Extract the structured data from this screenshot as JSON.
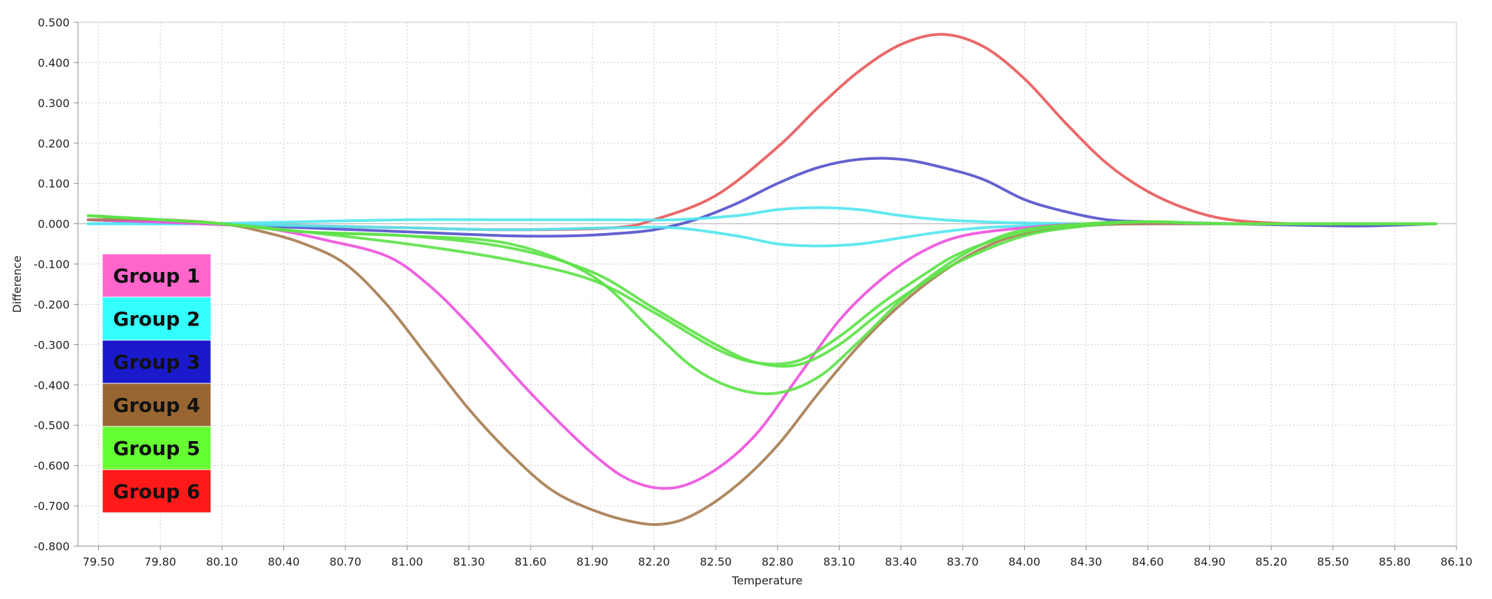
{
  "chart_data": {
    "type": "line",
    "title": "",
    "xlabel": "Temperature",
    "ylabel": "Difference",
    "xlim": [
      79.4,
      86.1
    ],
    "ylim": [
      -0.8,
      0.5
    ],
    "x_ticks": [
      "79.50",
      "79.80",
      "80.10",
      "80.40",
      "80.70",
      "81.00",
      "81.30",
      "81.60",
      "81.90",
      "82.20",
      "82.50",
      "82.80",
      "83.10",
      "83.40",
      "83.70",
      "84.00",
      "84.30",
      "84.60",
      "84.90",
      "85.20",
      "85.50",
      "85.80",
      "86.10"
    ],
    "y_ticks": [
      "0.500",
      "0.400",
      "0.300",
      "0.200",
      "0.100",
      "0.000",
      "-0.100",
      "-0.200",
      "-0.300",
      "-0.400",
      "-0.500",
      "-0.600",
      "-0.700",
      "-0.800"
    ],
    "grid": true,
    "legend_placement": "left",
    "legend": [
      {
        "label": "Group 1",
        "color": "#ff66cc"
      },
      {
        "label": "Group 2",
        "color": "#33ffff"
      },
      {
        "label": "Group 3",
        "color": "#1a1acc"
      },
      {
        "label": "Group 4",
        "color": "#996633"
      },
      {
        "label": "Group 5",
        "color": "#66ff33"
      },
      {
        "label": "Group 6",
        "color": "#ff1a1a"
      }
    ],
    "series": [
      {
        "group": "Group 6",
        "color": "#e85c5c",
        "x": [
          79.45,
          80.0,
          80.5,
          81.0,
          81.5,
          82.0,
          82.2,
          82.5,
          82.8,
          83.0,
          83.2,
          83.4,
          83.6,
          83.8,
          84.0,
          84.2,
          84.4,
          84.6,
          84.8,
          85.0,
          85.3,
          85.6,
          85.9,
          86.0
        ],
        "y": [
          0.01,
          0.0,
          -0.005,
          -0.01,
          -0.015,
          -0.01,
          0.01,
          0.07,
          0.19,
          0.29,
          0.38,
          0.445,
          0.47,
          0.44,
          0.36,
          0.25,
          0.15,
          0.08,
          0.035,
          0.01,
          0.0,
          -0.002,
          0.0,
          0.0
        ]
      },
      {
        "group": "Group 3",
        "color": "#5555cc",
        "x": [
          79.45,
          80.0,
          80.5,
          81.0,
          81.5,
          81.8,
          82.0,
          82.2,
          82.4,
          82.6,
          82.8,
          83.0,
          83.2,
          83.4,
          83.6,
          83.8,
          84.0,
          84.2,
          84.4,
          84.6,
          85.0,
          85.5,
          85.7,
          86.0
        ],
        "y": [
          0.01,
          0.0,
          -0.01,
          -0.02,
          -0.03,
          -0.03,
          -0.025,
          -0.015,
          0.01,
          0.05,
          0.1,
          0.14,
          0.16,
          0.16,
          0.14,
          0.11,
          0.06,
          0.03,
          0.01,
          0.005,
          0.0,
          -0.005,
          -0.005,
          0.0
        ]
      },
      {
        "group": "Group 2",
        "color": "#55e6f0",
        "x": [
          79.45,
          80.0,
          80.5,
          81.0,
          81.5,
          82.0,
          82.3,
          82.6,
          82.8,
          83.0,
          83.2,
          83.4,
          83.6,
          83.8,
          84.0,
          84.3,
          84.6,
          85.0,
          86.0
        ],
        "y": [
          0.0,
          0.0,
          0.005,
          0.01,
          0.01,
          0.01,
          0.01,
          0.02,
          0.035,
          0.04,
          0.035,
          0.02,
          0.01,
          0.005,
          0.002,
          0.0,
          0.0,
          0.0,
          0.0
        ]
      },
      {
        "group": "Group 2",
        "color": "#55e6f0",
        "x": [
          79.45,
          80.0,
          80.5,
          81.0,
          81.5,
          82.0,
          82.3,
          82.6,
          82.8,
          83.0,
          83.2,
          83.4,
          83.6,
          83.8,
          84.0,
          84.3,
          84.6,
          85.0,
          86.0
        ],
        "y": [
          0.0,
          0.0,
          -0.005,
          -0.01,
          -0.015,
          -0.01,
          -0.01,
          -0.03,
          -0.05,
          -0.055,
          -0.05,
          -0.035,
          -0.02,
          -0.01,
          -0.005,
          0.0,
          0.0,
          0.0,
          0.0
        ]
      },
      {
        "group": "Group 1",
        "color": "#ee55dd",
        "x": [
          79.45,
          80.0,
          80.3,
          80.6,
          80.9,
          81.1,
          81.3,
          81.6,
          81.9,
          82.1,
          82.3,
          82.5,
          82.7,
          82.9,
          83.1,
          83.3,
          83.5,
          83.7,
          84.0,
          84.3,
          84.6,
          85.0,
          86.0
        ],
        "y": [
          0.01,
          0.0,
          -0.01,
          -0.04,
          -0.08,
          -0.15,
          -0.25,
          -0.42,
          -0.57,
          -0.64,
          -0.655,
          -0.61,
          -0.52,
          -0.38,
          -0.24,
          -0.14,
          -0.07,
          -0.03,
          -0.01,
          0.0,
          0.0,
          0.0,
          0.0
        ]
      },
      {
        "group": "Group 4",
        "color": "#a87f55",
        "x": [
          79.45,
          79.8,
          80.1,
          80.3,
          80.5,
          80.7,
          80.9,
          81.1,
          81.3,
          81.5,
          81.7,
          81.9,
          82.1,
          82.25,
          82.4,
          82.6,
          82.8,
          83.0,
          83.2,
          83.4,
          83.6,
          83.8,
          84.0,
          84.3,
          84.6,
          85.0,
          86.0
        ],
        "y": [
          0.01,
          0.01,
          0.0,
          -0.02,
          -0.05,
          -0.1,
          -0.2,
          -0.33,
          -0.46,
          -0.57,
          -0.66,
          -0.71,
          -0.74,
          -0.745,
          -0.72,
          -0.65,
          -0.55,
          -0.42,
          -0.3,
          -0.2,
          -0.12,
          -0.06,
          -0.025,
          -0.005,
          0.0,
          0.0,
          0.0
        ]
      },
      {
        "group": "Group 5",
        "color": "#5ee24a",
        "x": [
          79.45,
          79.8,
          80.1,
          80.5,
          81.0,
          81.5,
          81.9,
          82.2,
          82.5,
          82.7,
          82.9,
          83.1,
          83.3,
          83.5,
          83.7,
          84.0,
          84.3,
          84.6,
          85.0,
          86.0
        ],
        "y": [
          0.02,
          0.01,
          0.0,
          -0.02,
          -0.05,
          -0.09,
          -0.14,
          -0.22,
          -0.31,
          -0.345,
          -0.34,
          -0.28,
          -0.2,
          -0.13,
          -0.07,
          -0.02,
          0.0,
          0.005,
          0.0,
          0.0
        ]
      },
      {
        "group": "Group 5",
        "color": "#5ee24a",
        "x": [
          79.45,
          79.8,
          80.1,
          80.5,
          81.0,
          81.5,
          81.9,
          82.2,
          82.4,
          82.6,
          82.8,
          83.0,
          83.2,
          83.4,
          83.6,
          83.8,
          84.0,
          84.3,
          84.6,
          85.0,
          86.0
        ],
        "y": [
          0.02,
          0.01,
          0.0,
          -0.02,
          -0.03,
          -0.05,
          -0.13,
          -0.27,
          -0.36,
          -0.41,
          -0.42,
          -0.38,
          -0.29,
          -0.19,
          -0.11,
          -0.05,
          -0.015,
          0.0,
          0.005,
          0.0,
          0.0
        ]
      },
      {
        "group": "Group 5",
        "color": "#5ee24a",
        "x": [
          79.45,
          79.8,
          80.1,
          80.5,
          81.0,
          81.5,
          81.9,
          82.2,
          82.5,
          82.7,
          82.9,
          83.1,
          83.3,
          83.5,
          83.7,
          84.0,
          84.3,
          84.6,
          85.0,
          86.0
        ],
        "y": [
          0.02,
          0.01,
          0.0,
          -0.02,
          -0.03,
          -0.06,
          -0.12,
          -0.21,
          -0.3,
          -0.345,
          -0.35,
          -0.3,
          -0.22,
          -0.15,
          -0.09,
          -0.03,
          -0.005,
          0.005,
          0.0,
          0.0
        ]
      }
    ]
  }
}
